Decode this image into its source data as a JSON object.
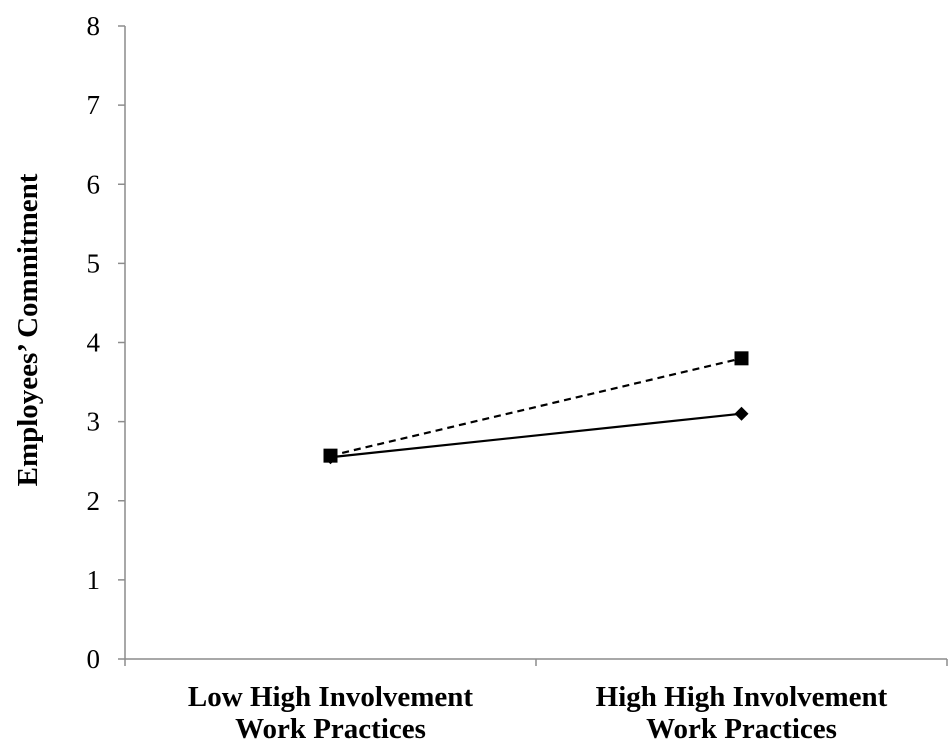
{
  "chart_data": {
    "type": "line",
    "categories": [
      [
        "Low High Involvement",
        "Work Practices"
      ],
      [
        "High High Involvement",
        "Work Practices"
      ]
    ],
    "series": [
      {
        "values": [
          2.55,
          3.1
        ],
        "line_style": "solid",
        "marker": "diamond",
        "color": "#000000"
      },
      {
        "values": [
          2.57,
          3.8
        ],
        "line_style": "dashed",
        "marker": "square",
        "color": "#000000"
      }
    ],
    "ylabel": "Employees’ Commitment",
    "xlabel": "",
    "title": "",
    "ylim": [
      0,
      8
    ],
    "yticks": [
      0,
      1,
      2,
      3,
      4,
      5,
      6,
      7,
      8
    ],
    "grid": false,
    "legend": "none"
  }
}
